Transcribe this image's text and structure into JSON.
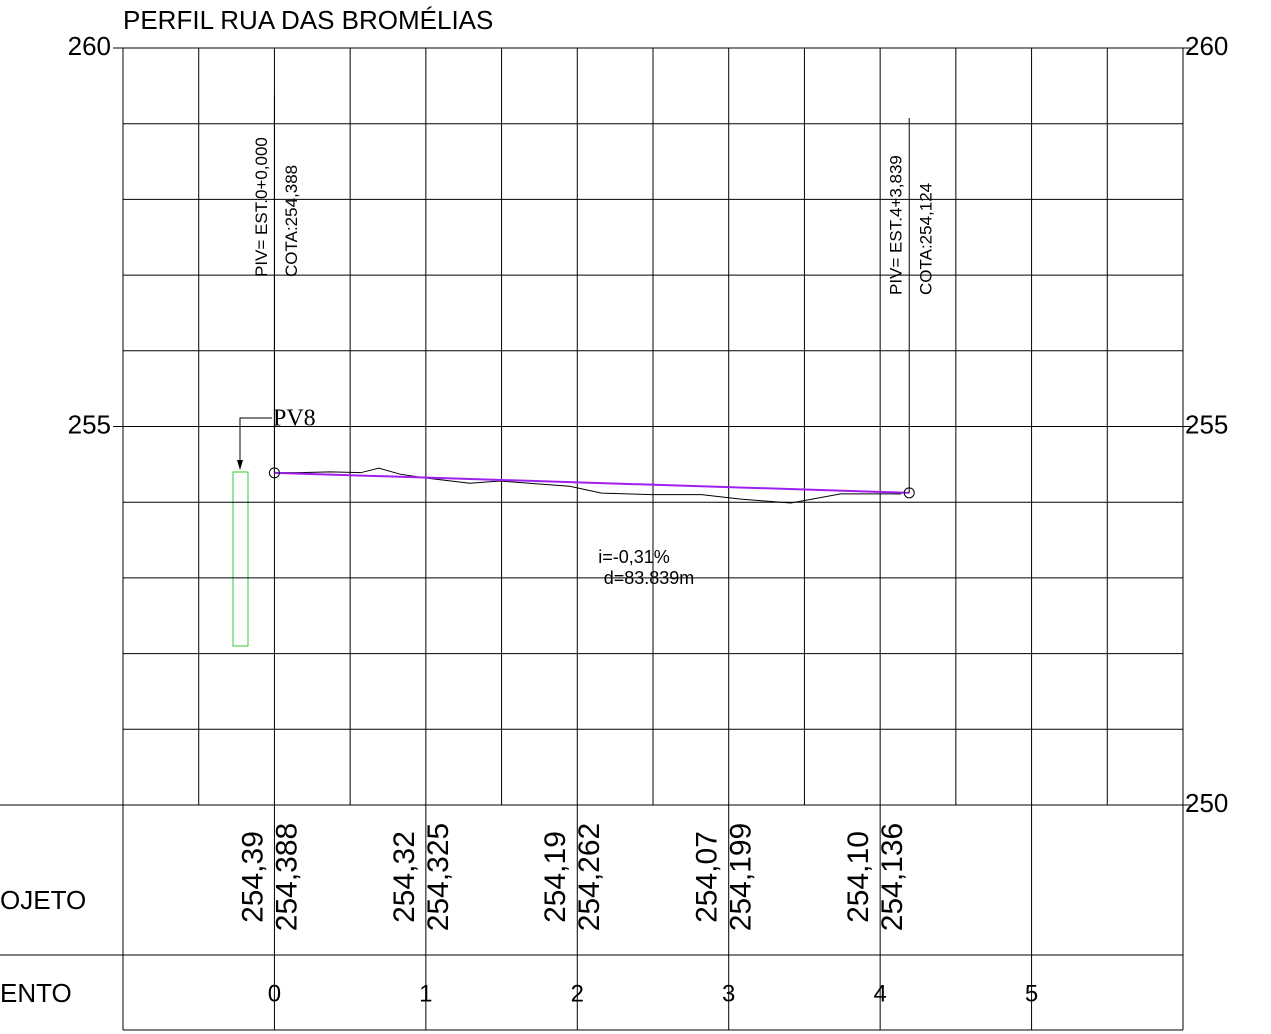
{
  "chart_data": {
    "type": "line",
    "title": "PERFIL RUA DAS BROMÉLIAS",
    "xlim": [
      -1,
      6
    ],
    "ylim": [
      250,
      260
    ],
    "xticks": [
      0,
      1,
      2,
      3,
      4,
      5
    ],
    "yticks": [
      250,
      255,
      260
    ],
    "grid_x": [
      -1,
      -0.5,
      0,
      0.5,
      1,
      1.5,
      2,
      2.5,
      3,
      3.5,
      4,
      4.5,
      5,
      5.5,
      6
    ],
    "grid_y": [
      250,
      251,
      252,
      253,
      254,
      255,
      256,
      257,
      258,
      259,
      260
    ],
    "series": [
      {
        "color": "#000000",
        "x": [
          0,
          0.17,
          0.37,
          0.57,
          0.69,
          0.83,
          1,
          1.29,
          1.49,
          1.75,
          1.95,
          2.16,
          2.49,
          2.82,
          3.08,
          3.41,
          3.74,
          4.14
        ],
        "values": [
          254.39,
          254.39,
          254.4,
          254.39,
          254.45,
          254.37,
          254.32,
          254.25,
          254.28,
          254.24,
          254.21,
          254.12,
          254.1,
          254.1,
          254.04,
          253.99,
          254.11,
          254.11
        ]
      },
      {
        "color": "#a020f0",
        "x": [
          0,
          4.192
        ],
        "values": [
          254.388,
          254.124
        ]
      }
    ],
    "annotations": {
      "piv": [
        {
          "x": 0,
          "value": 254.388,
          "station": "PIV= EST.0+0,000",
          "cota": "COTA:254,388"
        },
        {
          "x": 4.192,
          "value": 254.124,
          "station": "PIV= EST.4+3,839",
          "cota": "COTA:254,124"
        }
      ],
      "pv": "PV8",
      "slope": "i=-0,31%",
      "distance": "d=83.839m"
    },
    "table": {
      "row_label": "OJETO",
      "station_label": "ENTO",
      "cells": [
        [
          "254,39",
          "254,388"
        ],
        [
          "254,32",
          "254,325"
        ],
        [
          "254,19",
          "254,262"
        ],
        [
          "254,07",
          "254,199"
        ],
        [
          "254,10",
          "254,136"
        ]
      ]
    }
  }
}
